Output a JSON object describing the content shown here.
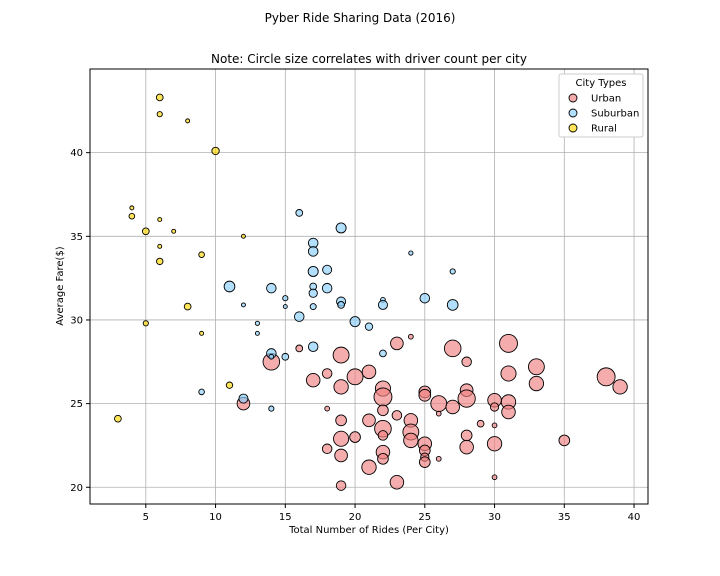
{
  "chart_data": {
    "type": "scatter",
    "suptitle": "Pyber Ride Sharing Data (2016)",
    "title": "Note: Circle size correlates with driver count per city",
    "xlabel": "Total Number of Rides (Per City)",
    "ylabel": "Average Fare($)",
    "xlim": [
      1,
      41
    ],
    "ylim": [
      19,
      45
    ],
    "xticks": [
      5,
      10,
      15,
      20,
      25,
      30,
      35,
      40
    ],
    "yticks": [
      20,
      25,
      30,
      35,
      40
    ],
    "grid": true,
    "legend": {
      "title": "City Types",
      "position": "top-right"
    },
    "size_encoding": "driver count per city",
    "series": [
      {
        "name": "Urban",
        "color": "#f08080",
        "points": [
          {
            "x": 14,
            "y": 27.5,
            "drivers": 60
          },
          {
            "x": 12,
            "y": 25.0,
            "drivers": 35
          },
          {
            "x": 16,
            "y": 28.3,
            "drivers": 10
          },
          {
            "x": 17,
            "y": 26.4,
            "drivers": 40
          },
          {
            "x": 18,
            "y": 24.7,
            "drivers": 5
          },
          {
            "x": 18,
            "y": 22.3,
            "drivers": 20
          },
          {
            "x": 18,
            "y": 26.8,
            "drivers": 20
          },
          {
            "x": 19,
            "y": 27.9,
            "drivers": 55
          },
          {
            "x": 19,
            "y": 26.0,
            "drivers": 45
          },
          {
            "x": 19,
            "y": 24.0,
            "drivers": 25
          },
          {
            "x": 19,
            "y": 22.9,
            "drivers": 50
          },
          {
            "x": 19,
            "y": 21.9,
            "drivers": 35
          },
          {
            "x": 19,
            "y": 20.1,
            "drivers": 20
          },
          {
            "x": 20,
            "y": 26.6,
            "drivers": 55
          },
          {
            "x": 20,
            "y": 23.0,
            "drivers": 25
          },
          {
            "x": 21,
            "y": 26.9,
            "drivers": 40
          },
          {
            "x": 21,
            "y": 24.0,
            "drivers": 35
          },
          {
            "x": 21,
            "y": 21.2,
            "drivers": 45
          },
          {
            "x": 22,
            "y": 25.9,
            "drivers": 50
          },
          {
            "x": 22,
            "y": 25.4,
            "drivers": 70
          },
          {
            "x": 22,
            "y": 24.6,
            "drivers": 25
          },
          {
            "x": 22,
            "y": 23.5,
            "drivers": 60
          },
          {
            "x": 22,
            "y": 23.1,
            "drivers": 20
          },
          {
            "x": 22,
            "y": 22.1,
            "drivers": 40
          },
          {
            "x": 22,
            "y": 21.7,
            "drivers": 25
          },
          {
            "x": 23,
            "y": 28.6,
            "drivers": 35
          },
          {
            "x": 23,
            "y": 24.3,
            "drivers": 20
          },
          {
            "x": 23,
            "y": 20.3,
            "drivers": 40
          },
          {
            "x": 24,
            "y": 29.0,
            "drivers": 5
          },
          {
            "x": 24,
            "y": 24.0,
            "drivers": 40
          },
          {
            "x": 24,
            "y": 23.3,
            "drivers": 55
          },
          {
            "x": 24,
            "y": 22.8,
            "drivers": 45
          },
          {
            "x": 25,
            "y": 25.7,
            "drivers": 30
          },
          {
            "x": 25,
            "y": 25.5,
            "drivers": 30
          },
          {
            "x": 25,
            "y": 22.6,
            "drivers": 40
          },
          {
            "x": 25,
            "y": 22.2,
            "drivers": 25
          },
          {
            "x": 25,
            "y": 21.8,
            "drivers": 15
          },
          {
            "x": 25,
            "y": 21.5,
            "drivers": 25
          },
          {
            "x": 26,
            "y": 25.0,
            "drivers": 55
          },
          {
            "x": 26,
            "y": 24.4,
            "drivers": 5
          },
          {
            "x": 26,
            "y": 21.7,
            "drivers": 5
          },
          {
            "x": 27,
            "y": 28.3,
            "drivers": 60
          },
          {
            "x": 27,
            "y": 24.8,
            "drivers": 40
          },
          {
            "x": 28,
            "y": 27.5,
            "drivers": 20
          },
          {
            "x": 28,
            "y": 25.8,
            "drivers": 35
          },
          {
            "x": 28,
            "y": 25.3,
            "drivers": 65
          },
          {
            "x": 28,
            "y": 23.1,
            "drivers": 25
          },
          {
            "x": 28,
            "y": 22.4,
            "drivers": 40
          },
          {
            "x": 29,
            "y": 23.8,
            "drivers": 10
          },
          {
            "x": 30,
            "y": 25.2,
            "drivers": 40
          },
          {
            "x": 30,
            "y": 24.8,
            "drivers": 15
          },
          {
            "x": 30,
            "y": 23.7,
            "drivers": 5
          },
          {
            "x": 30,
            "y": 22.6,
            "drivers": 45
          },
          {
            "x": 30,
            "y": 20.6,
            "drivers": 5
          },
          {
            "x": 31,
            "y": 28.6,
            "drivers": 70
          },
          {
            "x": 31,
            "y": 26.8,
            "drivers": 50
          },
          {
            "x": 31,
            "y": 25.1,
            "drivers": 45
          },
          {
            "x": 31,
            "y": 24.5,
            "drivers": 40
          },
          {
            "x": 33,
            "y": 27.2,
            "drivers": 55
          },
          {
            "x": 33,
            "y": 26.2,
            "drivers": 45
          },
          {
            "x": 35,
            "y": 22.8,
            "drivers": 25
          },
          {
            "x": 38,
            "y": 26.6,
            "drivers": 70
          },
          {
            "x": 39,
            "y": 26.0,
            "drivers": 45
          }
        ]
      },
      {
        "name": "Suburban",
        "color": "#87cefa",
        "points": [
          {
            "x": 9,
            "y": 25.7,
            "drivers": 7
          },
          {
            "x": 11,
            "y": 32.0,
            "drivers": 25
          },
          {
            "x": 12,
            "y": 25.3,
            "drivers": 18
          },
          {
            "x": 12,
            "y": 30.9,
            "drivers": 1
          },
          {
            "x": 13,
            "y": 29.8,
            "drivers": 4
          },
          {
            "x": 13,
            "y": 29.2,
            "drivers": 1
          },
          {
            "x": 14,
            "y": 31.9,
            "drivers": 20
          },
          {
            "x": 14,
            "y": 28.0,
            "drivers": 20
          },
          {
            "x": 14,
            "y": 27.8,
            "drivers": 5
          },
          {
            "x": 14,
            "y": 24.7,
            "drivers": 6
          },
          {
            "x": 15,
            "y": 31.3,
            "drivers": 6
          },
          {
            "x": 15,
            "y": 30.8,
            "drivers": 2
          },
          {
            "x": 15,
            "y": 27.8,
            "drivers": 10
          },
          {
            "x": 16,
            "y": 36.4,
            "drivers": 10
          },
          {
            "x": 16,
            "y": 30.2,
            "drivers": 20
          },
          {
            "x": 17,
            "y": 34.6,
            "drivers": 20
          },
          {
            "x": 17,
            "y": 34.1,
            "drivers": 20
          },
          {
            "x": 17,
            "y": 32.9,
            "drivers": 22
          },
          {
            "x": 17,
            "y": 32.0,
            "drivers": 10
          },
          {
            "x": 17,
            "y": 31.6,
            "drivers": 15
          },
          {
            "x": 17,
            "y": 30.8,
            "drivers": 8
          },
          {
            "x": 17,
            "y": 28.4,
            "drivers": 20
          },
          {
            "x": 18,
            "y": 33.0,
            "drivers": 18
          },
          {
            "x": 18,
            "y": 31.9,
            "drivers": 20
          },
          {
            "x": 19,
            "y": 35.5,
            "drivers": 22
          },
          {
            "x": 19,
            "y": 31.1,
            "drivers": 18
          },
          {
            "x": 19,
            "y": 30.9,
            "drivers": 10
          },
          {
            "x": 20,
            "y": 29.9,
            "drivers": 22
          },
          {
            "x": 21,
            "y": 29.6,
            "drivers": 12
          },
          {
            "x": 22,
            "y": 31.2,
            "drivers": 5
          },
          {
            "x": 22,
            "y": 30.9,
            "drivers": 18
          },
          {
            "x": 22,
            "y": 28.0,
            "drivers": 10
          },
          {
            "x": 24,
            "y": 34.0,
            "drivers": 4
          },
          {
            "x": 25,
            "y": 31.3,
            "drivers": 20
          },
          {
            "x": 27,
            "y": 32.9,
            "drivers": 6
          },
          {
            "x": 27,
            "y": 30.9,
            "drivers": 25
          }
        ]
      },
      {
        "name": "Rural",
        "color": "#ffd700",
        "points": [
          {
            "x": 3,
            "y": 24.1,
            "drivers": 10
          },
          {
            "x": 4,
            "y": 36.7,
            "drivers": 1
          },
          {
            "x": 4,
            "y": 36.2,
            "drivers": 7
          },
          {
            "x": 5,
            "y": 35.3,
            "drivers": 10
          },
          {
            "x": 5,
            "y": 29.8,
            "drivers": 6
          },
          {
            "x": 6,
            "y": 43.3,
            "drivers": 10
          },
          {
            "x": 6,
            "y": 42.3,
            "drivers": 6
          },
          {
            "x": 6,
            "y": 36.0,
            "drivers": 3
          },
          {
            "x": 6,
            "y": 34.4,
            "drivers": 2
          },
          {
            "x": 6,
            "y": 33.5,
            "drivers": 9
          },
          {
            "x": 7,
            "y": 35.3,
            "drivers": 2
          },
          {
            "x": 8,
            "y": 41.9,
            "drivers": 1
          },
          {
            "x": 8,
            "y": 30.8,
            "drivers": 10
          },
          {
            "x": 9,
            "y": 33.9,
            "drivers": 7
          },
          {
            "x": 9,
            "y": 29.2,
            "drivers": 1
          },
          {
            "x": 10,
            "y": 40.1,
            "drivers": 12
          },
          {
            "x": 11,
            "y": 26.1,
            "drivers": 9
          },
          {
            "x": 12,
            "y": 35.0,
            "drivers": 3
          }
        ]
      }
    ]
  }
}
